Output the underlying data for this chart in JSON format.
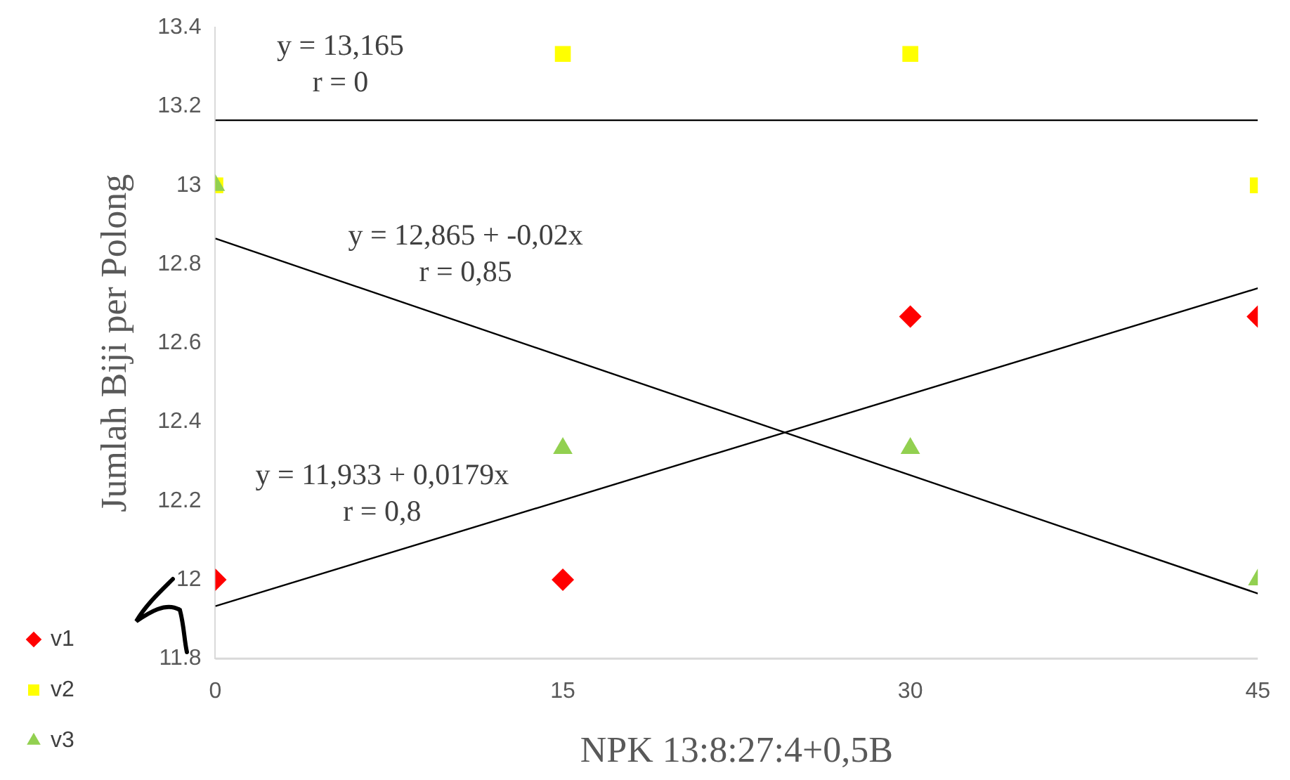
{
  "chart_data": {
    "type": "scatter",
    "xlabel": "NPK 13:8:27:4+0,5B",
    "ylabel": "Jumlah Biji per Polong",
    "xlim": [
      0,
      45
    ],
    "xticks": [
      0,
      15,
      30,
      45
    ],
    "ylim": [
      11.8,
      13.4
    ],
    "yticks": [
      11.8,
      12,
      12.2,
      12.4,
      12.6,
      12.8,
      13,
      13.2,
      13.4
    ],
    "grid": false,
    "legend": "bottom left",
    "series": [
      {
        "name": "v1",
        "type": "scatter",
        "marker": "diamond",
        "color": "#ff0000",
        "x": [
          0,
          15,
          30,
          45
        ],
        "values": [
          12,
          12,
          12.667,
          12.667
        ]
      },
      {
        "name": "v2",
        "type": "scatter",
        "marker": "square",
        "color": "#ffff00",
        "x": [
          0,
          15,
          30,
          45
        ],
        "values": [
          13,
          13.333,
          13.333,
          13
        ]
      },
      {
        "name": "v3",
        "type": "scatter",
        "marker": "triangle",
        "color": "#92d050",
        "x": [
          0,
          15,
          30,
          45
        ],
        "values": [
          13,
          12.333,
          12.333,
          12
        ]
      },
      {
        "type": "line",
        "marker": "none",
        "color": "#000000",
        "x": [
          0,
          45
        ],
        "values": [
          13.165,
          13.165
        ]
      },
      {
        "type": "line",
        "marker": "none",
        "color": "#000000",
        "x": [
          0,
          45
        ],
        "values": [
          12.865,
          11.965
        ]
      },
      {
        "type": "line",
        "marker": "none",
        "color": "#000000",
        "x": [
          0,
          45
        ],
        "values": [
          11.933,
          12.739
        ]
      }
    ],
    "annotations": [
      "y = 13,165\nr = 0",
      "y = 12,865 + -0,02x\nr = 0,85",
      "y = 11,933 + 0,0179x\nr = 0,8"
    ]
  }
}
